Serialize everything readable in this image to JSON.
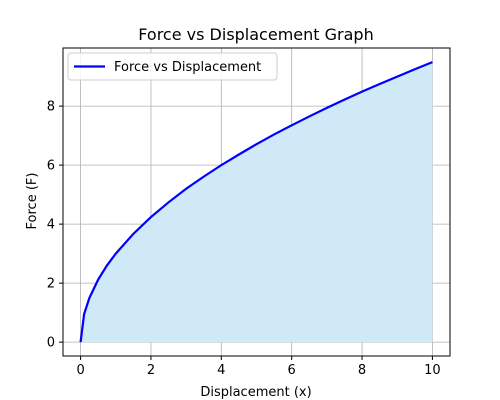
{
  "chart_data": {
    "type": "area",
    "title": "Force vs Displacement Graph",
    "xlabel": "Displacement (x)",
    "ylabel": "Force (F)",
    "xlim": [
      -0.5,
      10.5
    ],
    "ylim": [
      -0.47,
      9.97
    ],
    "xticks": [
      0,
      2,
      4,
      6,
      8,
      10
    ],
    "yticks": [
      0,
      2,
      4,
      6,
      8
    ],
    "grid": true,
    "legend_position": "top-left",
    "series": [
      {
        "name": "Force vs Displacement",
        "color": "#0000ff",
        "fill_color": "#cfe9f6",
        "x": [
          0,
          0.1,
          0.25,
          0.5,
          0.75,
          1,
          1.5,
          2,
          2.5,
          3,
          3.5,
          4,
          4.5,
          5,
          5.5,
          6,
          6.5,
          7,
          7.5,
          8,
          8.5,
          9,
          9.5,
          10
        ],
        "y": [
          0,
          0.95,
          1.5,
          2.12,
          2.6,
          3.0,
          3.67,
          4.24,
          4.74,
          5.2,
          5.61,
          6.0,
          6.36,
          6.71,
          7.04,
          7.35,
          7.65,
          7.94,
          8.22,
          8.49,
          8.75,
          9.0,
          9.25,
          9.49
        ]
      }
    ]
  }
}
